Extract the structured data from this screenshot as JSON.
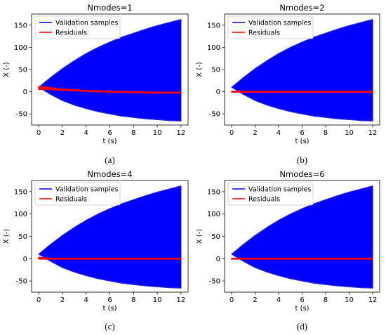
{
  "chart_data": [
    {
      "type": "area",
      "title": "Nmodes=1",
      "xlabel": "t (s)",
      "ylabel": "X (-)",
      "caption": "(a)",
      "xlim": [
        -0.6,
        12.6
      ],
      "ylim": [
        -75,
        175
      ],
      "xticks": [
        0,
        2,
        4,
        6,
        8,
        10,
        12
      ],
      "yticks": [
        -50,
        0,
        50,
        100,
        150
      ],
      "legend": [
        "Validation samples",
        "Residuals"
      ],
      "legend_position": "top-left",
      "series": [
        {
          "name": "Validation samples",
          "color": "#0000ff",
          "x": [
            0,
            1,
            2,
            3,
            4,
            5,
            6,
            7,
            8,
            9,
            10,
            11,
            12
          ],
          "upper": [
            10,
            32,
            52,
            70,
            86,
            100,
            112,
            123,
            132,
            141,
            149,
            156,
            163
          ],
          "lower": [
            10,
            -6,
            -20,
            -30,
            -38,
            -45,
            -50,
            -55,
            -58,
            -61,
            -63,
            -65,
            -66
          ]
        },
        {
          "name": "Residuals",
          "color": "#ff0000",
          "x": [
            0,
            1,
            2,
            3,
            4,
            5,
            6,
            7,
            8,
            9,
            10,
            11,
            12
          ],
          "upper": [
            12,
            9,
            6,
            4.5,
            3,
            2,
            1,
            0.5,
            0,
            -0.5,
            -1,
            -1,
            -1
          ],
          "lower": [
            5,
            5,
            3,
            2,
            1,
            0,
            -1,
            -1.5,
            -2,
            -2.5,
            -3,
            -3,
            -3
          ]
        }
      ]
    },
    {
      "type": "area",
      "title": "Nmodes=2",
      "xlabel": "t (s)",
      "ylabel": "X (-)",
      "caption": "(b)",
      "xlim": [
        -0.6,
        12.6
      ],
      "ylim": [
        -75,
        175
      ],
      "xticks": [
        0,
        2,
        4,
        6,
        8,
        10,
        12
      ],
      "yticks": [
        -50,
        0,
        50,
        100,
        150
      ],
      "legend": [
        "Validation samples",
        "Residuals"
      ],
      "legend_position": "top-left",
      "series": [
        {
          "name": "Validation samples",
          "color": "#0000ff",
          "x": [
            0,
            1,
            2,
            3,
            4,
            5,
            6,
            7,
            8,
            9,
            10,
            11,
            12
          ],
          "upper": [
            10,
            32,
            52,
            70,
            86,
            100,
            112,
            123,
            132,
            141,
            149,
            156,
            163
          ],
          "lower": [
            10,
            -6,
            -20,
            -30,
            -38,
            -45,
            -50,
            -55,
            -58,
            -61,
            -63,
            -65,
            -66
          ]
        },
        {
          "name": "Residuals",
          "color": "#ff0000",
          "x": [
            0,
            1,
            2,
            3,
            4,
            5,
            6,
            7,
            8,
            9,
            10,
            11,
            12
          ],
          "upper": [
            1,
            1,
            1,
            1,
            1,
            1,
            1,
            1,
            1,
            1,
            1,
            1,
            1
          ],
          "lower": [
            -1,
            -1,
            -1,
            -1,
            -1,
            -1,
            -1,
            -1,
            -1,
            -1,
            -1,
            -1,
            -1
          ]
        }
      ]
    },
    {
      "type": "area",
      "title": "Nmodes=4",
      "xlabel": "t (s)",
      "ylabel": "X (-)",
      "caption": "(c)",
      "xlim": [
        -0.6,
        12.6
      ],
      "ylim": [
        -75,
        175
      ],
      "xticks": [
        0,
        2,
        4,
        6,
        8,
        10,
        12
      ],
      "yticks": [
        -50,
        0,
        50,
        100,
        150
      ],
      "legend": [
        "Validation samples",
        "Residuals"
      ],
      "legend_position": "top-left",
      "series": [
        {
          "name": "Validation samples",
          "color": "#0000ff",
          "x": [
            0,
            1,
            2,
            3,
            4,
            5,
            6,
            7,
            8,
            9,
            10,
            11,
            12
          ],
          "upper": [
            10,
            32,
            52,
            70,
            86,
            100,
            112,
            123,
            132,
            141,
            149,
            156,
            163
          ],
          "lower": [
            10,
            -6,
            -20,
            -30,
            -38,
            -45,
            -50,
            -55,
            -58,
            -61,
            -63,
            -65,
            -66
          ]
        },
        {
          "name": "Residuals",
          "color": "#ff0000",
          "x": [
            0,
            1,
            2,
            3,
            4,
            5,
            6,
            7,
            8,
            9,
            10,
            11,
            12
          ],
          "upper": [
            3,
            1,
            1,
            1,
            1,
            1,
            1,
            1,
            1,
            1,
            1,
            1,
            1
          ],
          "lower": [
            -1,
            -1,
            -1,
            -1,
            -1,
            -1,
            -1,
            -1,
            -1,
            -1,
            -1,
            -1,
            -1
          ]
        }
      ]
    },
    {
      "type": "area",
      "title": "Nmodes=6",
      "xlabel": "t (s)",
      "ylabel": "X (-)",
      "caption": "(d)",
      "xlim": [
        -0.6,
        12.6
      ],
      "ylim": [
        -75,
        175
      ],
      "xticks": [
        0,
        2,
        4,
        6,
        8,
        10,
        12
      ],
      "yticks": [
        -50,
        0,
        50,
        100,
        150
      ],
      "legend": [
        "Validation samples",
        "Residuals"
      ],
      "legend_position": "top-left",
      "series": [
        {
          "name": "Validation samples",
          "color": "#0000ff",
          "x": [
            0,
            1,
            2,
            3,
            4,
            5,
            6,
            7,
            8,
            9,
            10,
            11,
            12
          ],
          "upper": [
            10,
            32,
            52,
            70,
            86,
            100,
            112,
            123,
            132,
            141,
            149,
            156,
            163
          ],
          "lower": [
            10,
            -6,
            -20,
            -30,
            -38,
            -45,
            -50,
            -55,
            -58,
            -61,
            -63,
            -65,
            -66
          ]
        },
        {
          "name": "Residuals",
          "color": "#ff0000",
          "x": [
            0,
            1,
            2,
            3,
            4,
            5,
            6,
            7,
            8,
            9,
            10,
            11,
            12
          ],
          "upper": [
            1,
            1,
            1,
            1,
            1,
            1,
            1,
            1,
            1,
            1,
            1,
            1,
            1
          ],
          "lower": [
            -1,
            -1,
            -1,
            -1,
            -1,
            -1,
            -1,
            -1,
            -1,
            -1,
            -1,
            -1,
            -1
          ]
        }
      ]
    }
  ]
}
